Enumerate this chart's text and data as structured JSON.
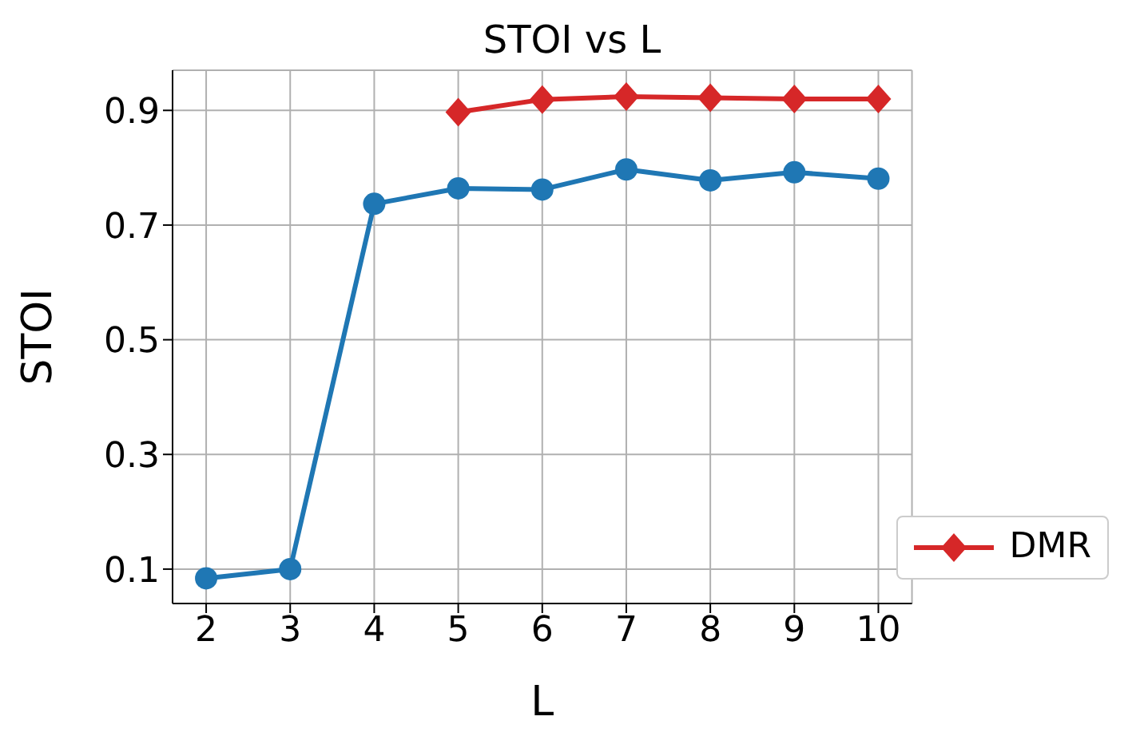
{
  "chart_data": {
    "type": "line",
    "title": "STOI vs L",
    "xlabel": "L",
    "ylabel": "STOI",
    "x": [
      2,
      3,
      4,
      5,
      6,
      7,
      8,
      9,
      10
    ],
    "series": [
      {
        "color": "#1f77b4",
        "marker": "circle",
        "values": [
          0.084,
          0.1,
          0.737,
          0.764,
          0.762,
          0.797,
          0.778,
          0.792,
          0.781
        ]
      },
      {
        "name": "DMR",
        "color": "#d62728",
        "marker": "diamond",
        "values": [
          null,
          null,
          null,
          0.897,
          0.919,
          0.924,
          0.922,
          0.92,
          0.92
        ]
      }
    ],
    "xlim": [
      1.6,
      10.4
    ],
    "xticks": [
      2,
      3,
      4,
      5,
      6,
      7,
      8,
      9,
      10
    ],
    "ylim": [
      0.04,
      0.97
    ],
    "yticks": [
      0.1,
      0.3,
      0.5,
      0.7,
      0.9
    ],
    "grid": true,
    "legend": "bottom right"
  }
}
